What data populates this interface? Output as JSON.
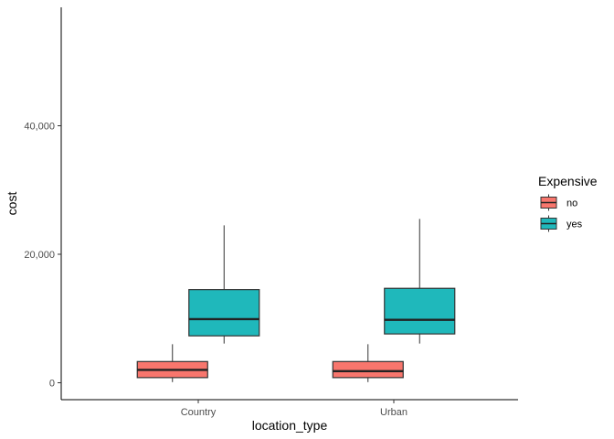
{
  "chart_data": {
    "type": "boxplot",
    "categories": [
      "Country",
      "Urban"
    ],
    "xlabel": "location_type",
    "ylabel": "cost",
    "ylim": [
      -2500,
      57800
    ],
    "yticks": [
      0,
      20000,
      40000
    ],
    "ytick_labels": [
      "0",
      "20,000",
      "40,000"
    ],
    "grid": false,
    "legend": {
      "title": "Expensive",
      "position": "right",
      "entries": [
        "no",
        "yes"
      ]
    },
    "series": [
      {
        "name": "no",
        "color": "#F8766D",
        "boxes": [
          {
            "category": "Country",
            "min": 100,
            "q1": 800,
            "median": 2000,
            "q3": 3300,
            "max": 6000
          },
          {
            "category": "Urban",
            "min": 100,
            "q1": 800,
            "median": 1800,
            "q3": 3300,
            "max": 6000
          }
        ]
      },
      {
        "name": "yes",
        "color": "#1FB8BB",
        "boxes": [
          {
            "category": "Country",
            "min": 6100,
            "q1": 7300,
            "median": 9900,
            "q3": 14500,
            "max": 24500
          },
          {
            "category": "Urban",
            "min": 6100,
            "q1": 7600,
            "median": 9800,
            "q3": 14700,
            "max": 25500
          }
        ]
      }
    ]
  }
}
